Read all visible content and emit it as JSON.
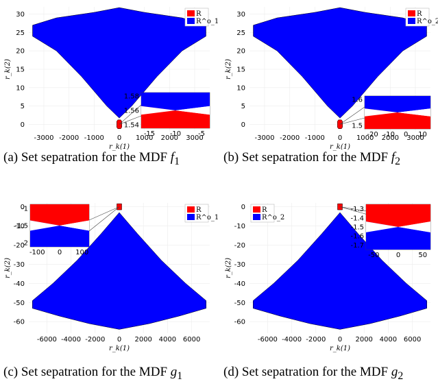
{
  "panels": [
    {
      "id": "a",
      "caption": {
        "prefix": "(a)  Set sepatration for the MDF ",
        "fn": "f",
        "sub": "1"
      },
      "chart_data": {
        "type": "area",
        "xlabel": "r_k(1)",
        "ylabel": "r_k(2)",
        "xlim": [
          -3600,
          3600
        ],
        "ylim": [
          -2,
          32
        ],
        "xticks": [
          -3000,
          -2000,
          -1000,
          0,
          1000,
          2000,
          3000
        ],
        "yticks": [
          0,
          5,
          10,
          15,
          20,
          25,
          30
        ],
        "legend": [
          "R",
          "R^o_1"
        ],
        "legend_placement": "top-right",
        "series_colors": [
          "#ff0000",
          "#0000ff"
        ],
        "blue_region": [
          [
            -3450,
            24
          ],
          [
            -3450,
            27
          ],
          [
            -2500,
            29
          ],
          [
            -1000,
            30.5
          ],
          [
            0,
            31.8
          ],
          [
            1000,
            30.5
          ],
          [
            2500,
            29
          ],
          [
            3450,
            27
          ],
          [
            3450,
            24
          ],
          [
            2500,
            20
          ],
          [
            1500,
            13
          ],
          [
            500,
            5
          ],
          [
            0,
            1.7
          ],
          [
            -500,
            5
          ],
          [
            -1500,
            13
          ],
          [
            -2500,
            20
          ]
        ],
        "red_region": [
          [
            -100,
            0.8
          ],
          [
            -60,
            1.2
          ],
          [
            60,
            1.2
          ],
          [
            100,
            0.8
          ],
          [
            100,
            -0.8
          ],
          [
            60,
            -1.2
          ],
          [
            -60,
            -1.2
          ],
          [
            -100,
            -0.8
          ]
        ],
        "inset": {
          "xticks": [
            "-15",
            "-10",
            "-5"
          ],
          "yticks": [
            "1.58",
            "1.56",
            "1.54"
          ],
          "top_color": "#0000ff",
          "bottom_color": "#ff0000"
        }
      }
    },
    {
      "id": "b",
      "caption": {
        "prefix": "(b)  Set sepatration for the MDF ",
        "fn": "f",
        "sub": "2"
      },
      "chart_data": {
        "type": "area",
        "xlabel": "r_k(1)",
        "ylabel": "r_k(2)",
        "xlim": [
          -3600,
          3600
        ],
        "ylim": [
          -2,
          32
        ],
        "xticks": [
          -3000,
          -2000,
          -1000,
          0,
          1000,
          2000,
          3000
        ],
        "yticks": [
          0,
          5,
          10,
          15,
          20,
          25,
          30
        ],
        "legend": [
          "R",
          "R^o_2"
        ],
        "legend_placement": "top-right",
        "series_colors": [
          "#ff0000",
          "#0000ff"
        ],
        "blue_region": [
          [
            -3450,
            24
          ],
          [
            -3450,
            27
          ],
          [
            -2500,
            29
          ],
          [
            -1000,
            30.5
          ],
          [
            0,
            31.8
          ],
          [
            1000,
            30.5
          ],
          [
            2500,
            29
          ],
          [
            3450,
            27
          ],
          [
            3450,
            24
          ],
          [
            2500,
            20
          ],
          [
            1500,
            13
          ],
          [
            500,
            5
          ],
          [
            0,
            1.7
          ],
          [
            -500,
            5
          ],
          [
            -1500,
            13
          ],
          [
            -2500,
            20
          ]
        ],
        "red_region": [
          [
            -100,
            0.8
          ],
          [
            -60,
            1.2
          ],
          [
            60,
            1.2
          ],
          [
            100,
            0.8
          ],
          [
            100,
            -0.8
          ],
          [
            60,
            -1.2
          ],
          [
            -60,
            -1.2
          ],
          [
            -100,
            -0.8
          ]
        ],
        "inset": {
          "xticks": [
            "-20",
            "-10",
            "0",
            "10"
          ],
          "yticks": [
            "1.6",
            "1.5"
          ],
          "top_color": "#0000ff",
          "bottom_color": "#ff0000"
        }
      }
    },
    {
      "id": "c",
      "caption": {
        "prefix": "(c)  Set sepatration for the MDF ",
        "fn": "g",
        "sub": "1"
      },
      "chart_data": {
        "type": "area",
        "xlabel": "r_k(1)",
        "ylabel": "r_k(2)",
        "xlim": [
          -7500,
          7500
        ],
        "ylim": [
          -66,
          2
        ],
        "xticks": [
          -6000,
          -4000,
          -2000,
          0,
          2000,
          4000,
          6000
        ],
        "yticks": [
          0,
          -10,
          -20,
          -30,
          -40,
          -50,
          -60
        ],
        "legend": [
          "R",
          "R^o_1"
        ],
        "legend_placement": "top-right",
        "series_colors": [
          "#ff0000",
          "#0000ff"
        ],
        "blue_region": [
          [
            0,
            -3
          ],
          [
            -1500,
            -14
          ],
          [
            -3500,
            -28
          ],
          [
            -5500,
            -40
          ],
          [
            -7200,
            -49
          ],
          [
            -7200,
            -53
          ],
          [
            -5000,
            -57
          ],
          [
            -2500,
            -61
          ],
          [
            0,
            -64
          ],
          [
            2500,
            -61
          ],
          [
            5000,
            -57
          ],
          [
            7200,
            -53
          ],
          [
            7200,
            -49
          ],
          [
            5500,
            -40
          ],
          [
            3500,
            -28
          ],
          [
            1500,
            -14
          ]
        ],
        "red_region": [
          [
            -200,
            1.6
          ],
          [
            200,
            1.6
          ],
          [
            200,
            -1.6
          ],
          [
            -200,
            -1.6
          ]
        ],
        "inset": {
          "xticks": [
            "-100",
            "0",
            "100"
          ],
          "yticks": [
            "-1",
            "-1.5",
            "-2"
          ],
          "top_color": "#ff0000",
          "bottom_color": "#0000ff"
        }
      }
    },
    {
      "id": "d",
      "caption": {
        "prefix": "(d)  Set sepatration for the MDF ",
        "fn": "g",
        "sub": "2"
      },
      "chart_data": {
        "type": "area",
        "xlabel": "r_k(1)",
        "ylabel": "r_k(2)",
        "xlim": [
          -7500,
          7500
        ],
        "ylim": [
          -66,
          2
        ],
        "xticks": [
          -6000,
          -4000,
          -2000,
          0,
          2000,
          4000,
          6000
        ],
        "yticks": [
          0,
          -10,
          -20,
          -30,
          -40,
          -50,
          -60
        ],
        "legend": [
          "R",
          "R^o_2"
        ],
        "legend_placement": "top-left",
        "series_colors": [
          "#ff0000",
          "#0000ff"
        ],
        "blue_region": [
          [
            0,
            -3
          ],
          [
            -1500,
            -14
          ],
          [
            -3500,
            -28
          ],
          [
            -5500,
            -40
          ],
          [
            -7200,
            -49
          ],
          [
            -7200,
            -53
          ],
          [
            -5000,
            -57
          ],
          [
            -2500,
            -61
          ],
          [
            0,
            -64
          ],
          [
            2500,
            -61
          ],
          [
            5000,
            -57
          ],
          [
            7200,
            -53
          ],
          [
            7200,
            -49
          ],
          [
            5500,
            -40
          ],
          [
            3500,
            -28
          ],
          [
            1500,
            -14
          ]
        ],
        "red_region": [
          [
            -200,
            1.6
          ],
          [
            200,
            1.6
          ],
          [
            200,
            -1.6
          ],
          [
            -200,
            -1.6
          ]
        ],
        "inset": {
          "xticks": [
            "-50",
            "0",
            "50"
          ],
          "yticks": [
            "-1.3",
            "-1.4",
            "-1.5",
            "-1.6",
            "-1.7"
          ],
          "top_color": "#ff0000",
          "bottom_color": "#0000ff"
        }
      }
    }
  ]
}
